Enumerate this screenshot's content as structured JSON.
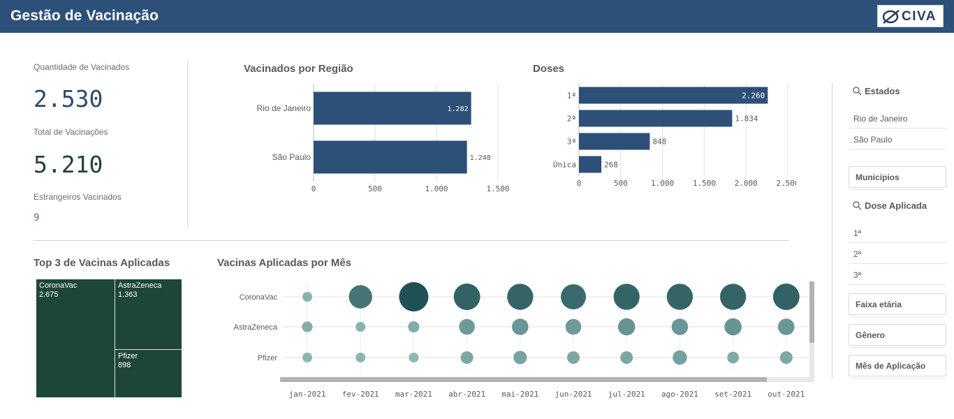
{
  "header": {
    "title": "Gestão de Vacinação",
    "logo_text": "CIVA"
  },
  "kpis": {
    "vaccinated_label": "Quantidade de Vacinados",
    "vaccinated_value": "2.530",
    "total_label": "Total de Vacinações",
    "total_value": "5.210",
    "foreign_label": "Estrangeiros Vacinados",
    "foreign_value": "9"
  },
  "colors": {
    "header": "#2d5079",
    "bar": "#2d5079",
    "treemap": "#1e4636",
    "bubble_dark": "#22565a",
    "bubble_light": "#8db7b0"
  },
  "chart_data": [
    {
      "type": "bar",
      "title": "Vacinados por Região",
      "categories": [
        "Rio de Janeiro",
        "São Paulo"
      ],
      "values": [
        1282,
        1248
      ],
      "value_labels": [
        "1.282",
        "1.248"
      ],
      "xlim": [
        0,
        1500
      ],
      "ticks": [
        "0",
        "500",
        "1.000",
        "1.500"
      ],
      "tick_values": [
        0,
        500,
        1000,
        1500
      ]
    },
    {
      "type": "bar",
      "title": "Doses",
      "categories": [
        "1ª",
        "2ª",
        "3ª",
        "Única"
      ],
      "values": [
        2260,
        1834,
        848,
        268
      ],
      "value_labels": [
        "2.260",
        "1.834",
        "848",
        "268"
      ],
      "xlim": [
        0,
        2500
      ],
      "ticks": [
        "0",
        "500",
        "1.000",
        "1.500",
        "2.000",
        "2.500"
      ],
      "tick_values": [
        0,
        500,
        1000,
        1500,
        2000,
        2500
      ]
    },
    {
      "type": "heatmap",
      "title": "Top 3 de Vacinas Aplicadas",
      "categories": [
        "CoronaVac",
        "AstraZeneca",
        "Pfizer"
      ],
      "values": [
        2675,
        1363,
        898
      ],
      "value_labels": [
        "2.675",
        "1.363",
        "898"
      ]
    },
    {
      "type": "scatter",
      "title": "Vacinas Aplicadas por Mês",
      "x": [
        "jan-2021",
        "fev-2021",
        "mar-2021",
        "abr-2021",
        "mai-2021",
        "jun-2021",
        "jul-2021",
        "ago-2021",
        "set-2021",
        "out-2021"
      ],
      "rows": [
        "CoronaVac",
        "AstraZeneca",
        "Pfizer"
      ],
      "series": [
        {
          "name": "CoronaVac",
          "values": [
            20,
            120,
            190,
            155,
            150,
            140,
            150,
            150,
            150,
            155
          ]
        },
        {
          "name": "AstraZeneca",
          "values": [
            25,
            20,
            28,
            55,
            60,
            55,
            65,
            60,
            65,
            60
          ]
        },
        {
          "name": "Pfizer",
          "values": [
            15,
            15,
            14,
            35,
            40,
            35,
            35,
            45,
            30,
            35
          ]
        }
      ]
    }
  ],
  "filters": {
    "estados": {
      "label": "Estados",
      "items": [
        "Rio de Janeiro",
        "São Paulo"
      ]
    },
    "municipios": "Municípios",
    "dose": {
      "label": "Dose Aplicada",
      "items": [
        "1ª",
        "2ª",
        "3ª"
      ]
    },
    "faixa": "Faixa etária",
    "genero": "Gênero",
    "mes": "Mês de Aplicação"
  }
}
